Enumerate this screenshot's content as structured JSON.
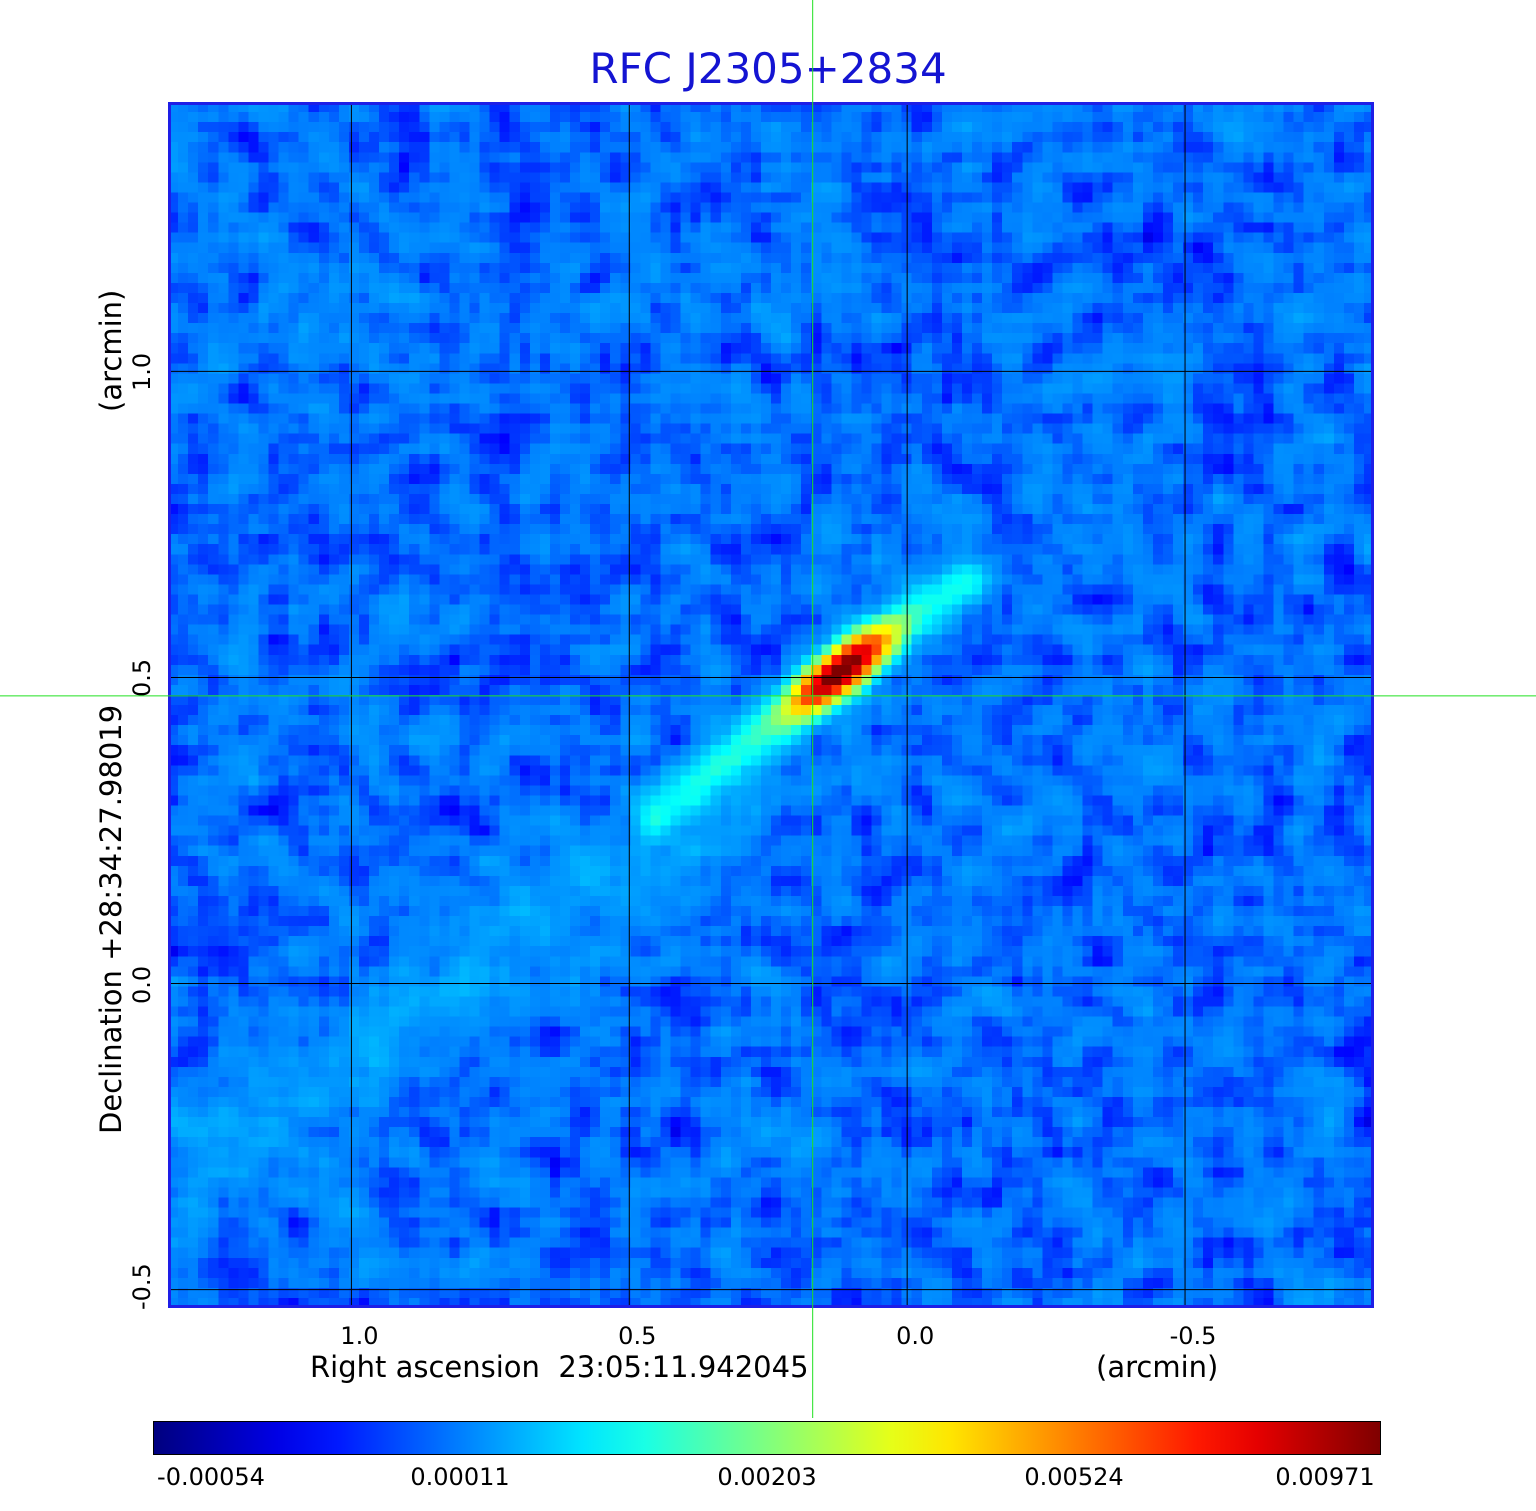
{
  "chart_data": {
    "type": "heatmap",
    "title": "RFC J2305+2834",
    "xlabel": "Right ascension  23:05:11.942045",
    "xunit": "(arcmin)",
    "ylabel": "Declination  +28:34:27.98019",
    "yunit": "(arcmin)",
    "xlim": [
      1.33,
      -0.84
    ],
    "ylim": [
      -0.53,
      1.44
    ],
    "x_ticks": [
      {
        "value": 1.0,
        "label": "1.0"
      },
      {
        "value": 0.5,
        "label": "0.5"
      },
      {
        "value": 0.0,
        "label": "0.0"
      },
      {
        "value": -0.5,
        "label": "-0.5"
      }
    ],
    "y_ticks": [
      {
        "value": 1.0,
        "label": "1.0"
      },
      {
        "value": 0.5,
        "label": "0.5"
      },
      {
        "value": 0.0,
        "label": "0.0"
      },
      {
        "value": -0.5,
        "label": "-0.5"
      }
    ],
    "grid": true,
    "crosshair": {
      "x": 0.17,
      "y": 0.47
    },
    "colorbar": {
      "placement": "bottom",
      "colormap": "jet",
      "ticks": [
        {
          "value": -0.00054,
          "label": "-0.00054"
        },
        {
          "value": 0.00011,
          "label": "0.00011"
        },
        {
          "value": 0.00203,
          "label": "0.00203"
        },
        {
          "value": 0.00524,
          "label": "0.00524"
        },
        {
          "value": 0.00971,
          "label": "0.00971"
        }
      ]
    },
    "features": [
      {
        "name": "core",
        "x": 0.12,
        "y": 0.51,
        "peak": 0.00971
      },
      {
        "name": "jet",
        "from": [
          0.45,
          0.28
        ],
        "to": [
          -0.1,
          0.66
        ],
        "level": 0.00203
      },
      {
        "name": "extended-emission",
        "from": [
          1.33,
          -0.33
        ],
        "to": [
          0.3,
          0.32
        ],
        "level": 0.00011
      }
    ],
    "colors": {
      "title": "#1414d2",
      "frame": "#1e1ee6",
      "grid": "#000000",
      "crosshair": "#20e020"
    }
  }
}
